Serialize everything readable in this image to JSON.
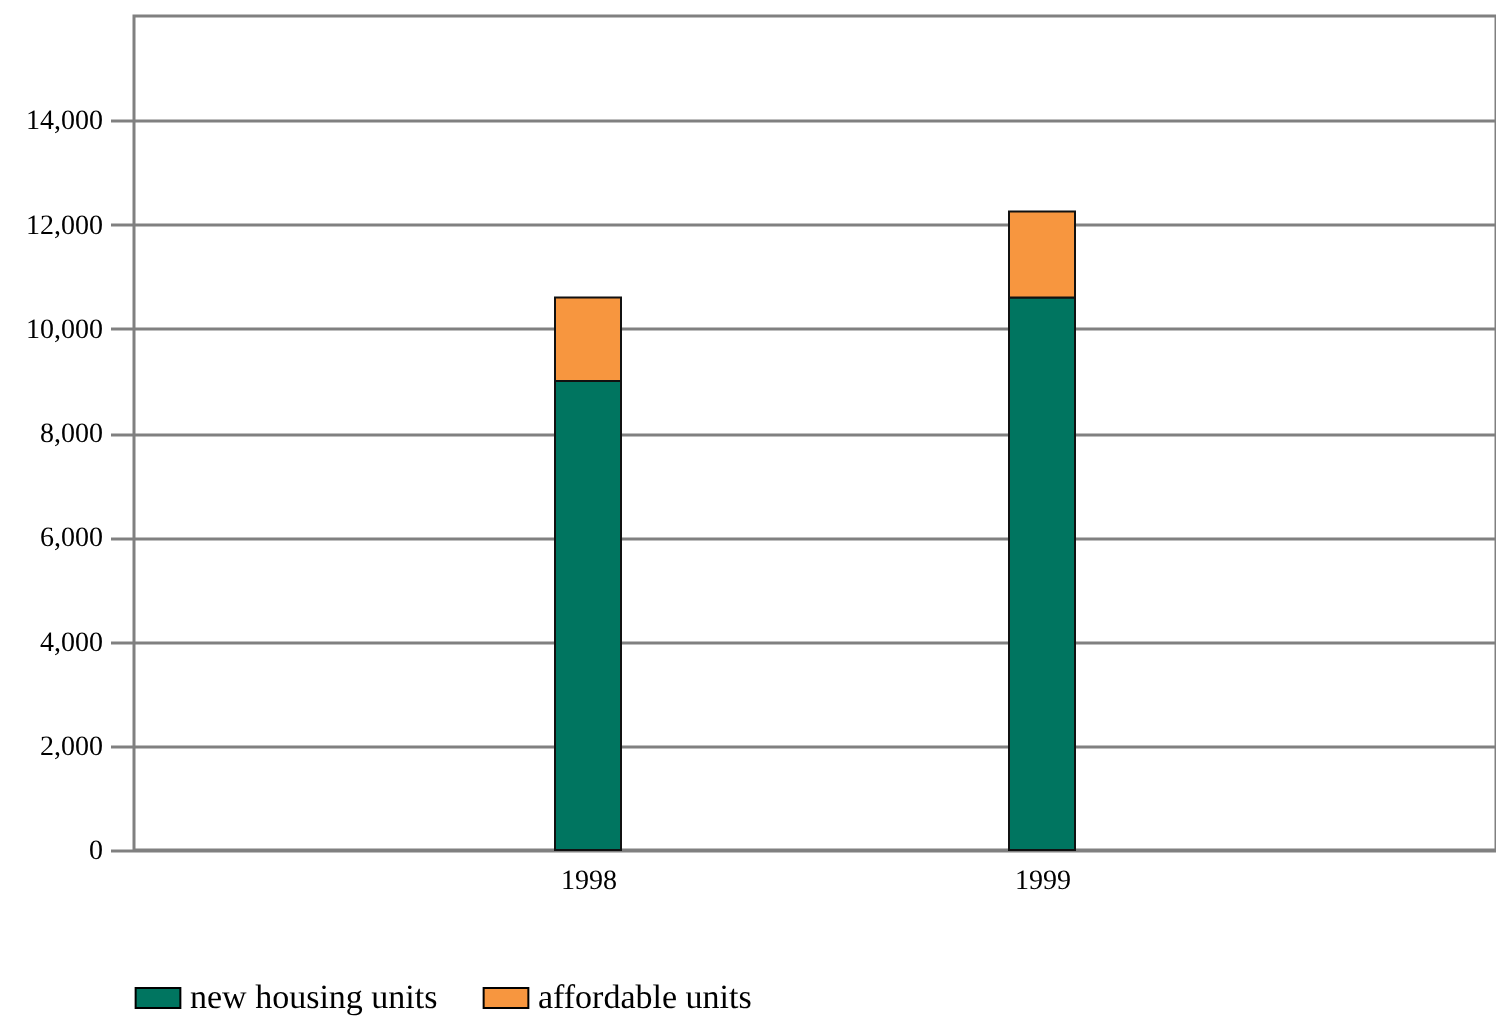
{
  "chart_data": {
    "type": "bar",
    "stacked": true,
    "categories": [
      "1998",
      "1999"
    ],
    "series": [
      {
        "name": "new housing units",
        "color": "#007560",
        "values": [
          9000,
          10600
        ]
      },
      {
        "name": "affordable units",
        "color": "#f7963f",
        "values": [
          1600,
          1650
        ]
      }
    ],
    "ylim": [
      0,
      16000
    ],
    "yticks": [
      0,
      {
        "value": 2000,
        "label": "2,000"
      },
      {
        "value": 4000,
        "label": "4,000"
      },
      {
        "value": 6000,
        "label": "6,000"
      },
      {
        "value": 8000,
        "label": "8,000"
      },
      {
        "value": 10000,
        "label": "10,000"
      },
      {
        "value": 12000,
        "label": "12,000"
      },
      {
        "value": 14000,
        "label": "14,000"
      }
    ],
    "grid": "y",
    "legend": "bottom"
  }
}
